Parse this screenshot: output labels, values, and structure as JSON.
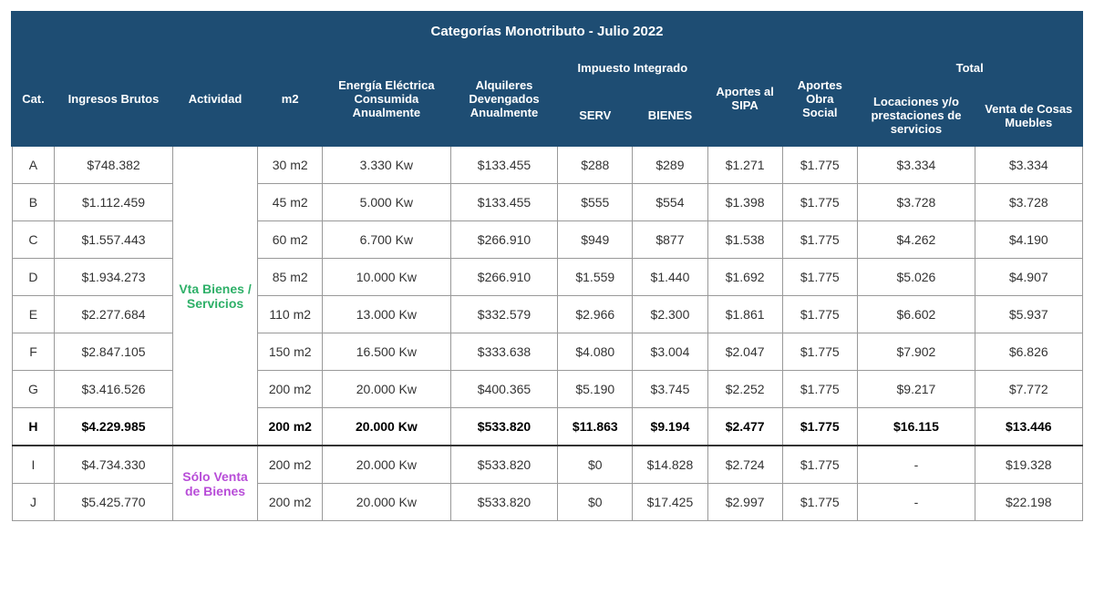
{
  "title": "Categorías Monotributo - Julio 2022",
  "headers": {
    "cat": "Cat.",
    "ingresos": "Ingresos Brutos",
    "actividad": "Actividad",
    "m2": "m2",
    "energia": "Energía Eléctrica Consumida Anualmente",
    "alquileres": "Alquileres Devengados Anualmente",
    "impuesto": "Impuesto Integrado",
    "serv": "SERV",
    "bienes": "BIENES",
    "sipa": "Aportes al SIPA",
    "obra": "Aportes Obra Social",
    "total": "Total",
    "locaciones": "Locaciones y/o prestaciones de servicios",
    "ventacosas": "Venta de Cosas Muebles"
  },
  "act1": "Vta Bienes / Servicios",
  "act2": "Sólo Venta de Bienes",
  "rows": [
    {
      "cat": "A",
      "ing": "$748.382",
      "m2": "30 m2",
      "kw": "3.330 Kw",
      "alq": "$133.455",
      "serv": "$288",
      "bien": "$289",
      "sipa": "$1.271",
      "obra": "$1.775",
      "loc": "$3.334",
      "vta": "$3.334"
    },
    {
      "cat": "B",
      "ing": "$1.112.459",
      "m2": "45 m2",
      "kw": "5.000 Kw",
      "alq": "$133.455",
      "serv": "$555",
      "bien": "$554",
      "sipa": "$1.398",
      "obra": "$1.775",
      "loc": "$3.728",
      "vta": "$3.728"
    },
    {
      "cat": "C",
      "ing": "$1.557.443",
      "m2": "60 m2",
      "kw": "6.700 Kw",
      "alq": "$266.910",
      "serv": "$949",
      "bien": "$877",
      "sipa": "$1.538",
      "obra": "$1.775",
      "loc": "$4.262",
      "vta": "$4.190"
    },
    {
      "cat": "D",
      "ing": "$1.934.273",
      "m2": "85 m2",
      "kw": "10.000 Kw",
      "alq": "$266.910",
      "serv": "$1.559",
      "bien": "$1.440",
      "sipa": "$1.692",
      "obra": "$1.775",
      "loc": "$5.026",
      "vta": "$4.907"
    },
    {
      "cat": "E",
      "ing": "$2.277.684",
      "m2": "110 m2",
      "kw": "13.000 Kw",
      "alq": "$332.579",
      "serv": "$2.966",
      "bien": "$2.300",
      "sipa": "$1.861",
      "obra": "$1.775",
      "loc": "$6.602",
      "vta": "$5.937"
    },
    {
      "cat": "F",
      "ing": "$2.847.105",
      "m2": "150 m2",
      "kw": "16.500 Kw",
      "alq": "$333.638",
      "serv": "$4.080",
      "bien": "$3.004",
      "sipa": "$2.047",
      "obra": "$1.775",
      "loc": "$7.902",
      "vta": "$6.826"
    },
    {
      "cat": "G",
      "ing": "$3.416.526",
      "m2": "200 m2",
      "kw": "20.000 Kw",
      "alq": "$400.365",
      "serv": "$5.190",
      "bien": "$3.745",
      "sipa": "$2.252",
      "obra": "$1.775",
      "loc": "$9.217",
      "vta": "$7.772"
    },
    {
      "cat": "H",
      "ing": "$4.229.985",
      "m2": "200 m2",
      "kw": "20.000 Kw",
      "alq": "$533.820",
      "serv": "$11.863",
      "bien": "$9.194",
      "sipa": "$2.477",
      "obra": "$1.775",
      "loc": "$16.115",
      "vta": "$13.446"
    },
    {
      "cat": "I",
      "ing": "$4.734.330",
      "m2": "200 m2",
      "kw": "20.000 Kw",
      "alq": "$533.820",
      "serv": "$0",
      "bien": "$14.828",
      "sipa": "$2.724",
      "obra": "$1.775",
      "loc": "-",
      "vta": "$19.328"
    },
    {
      "cat": "J",
      "ing": "$5.425.770",
      "m2": "200 m2",
      "kw": "20.000 Kw",
      "alq": "$533.820",
      "serv": "$0",
      "bien": "$17.425",
      "sipa": "$2.997",
      "obra": "$1.775",
      "loc": "-",
      "vta": "$22.198"
    }
  ],
  "colors": {
    "header_bg": "#1e4d73",
    "header_text": "#ffffff",
    "activity_green": "#2eb068",
    "activity_purple": "#b84dd8",
    "border": "#999999"
  }
}
